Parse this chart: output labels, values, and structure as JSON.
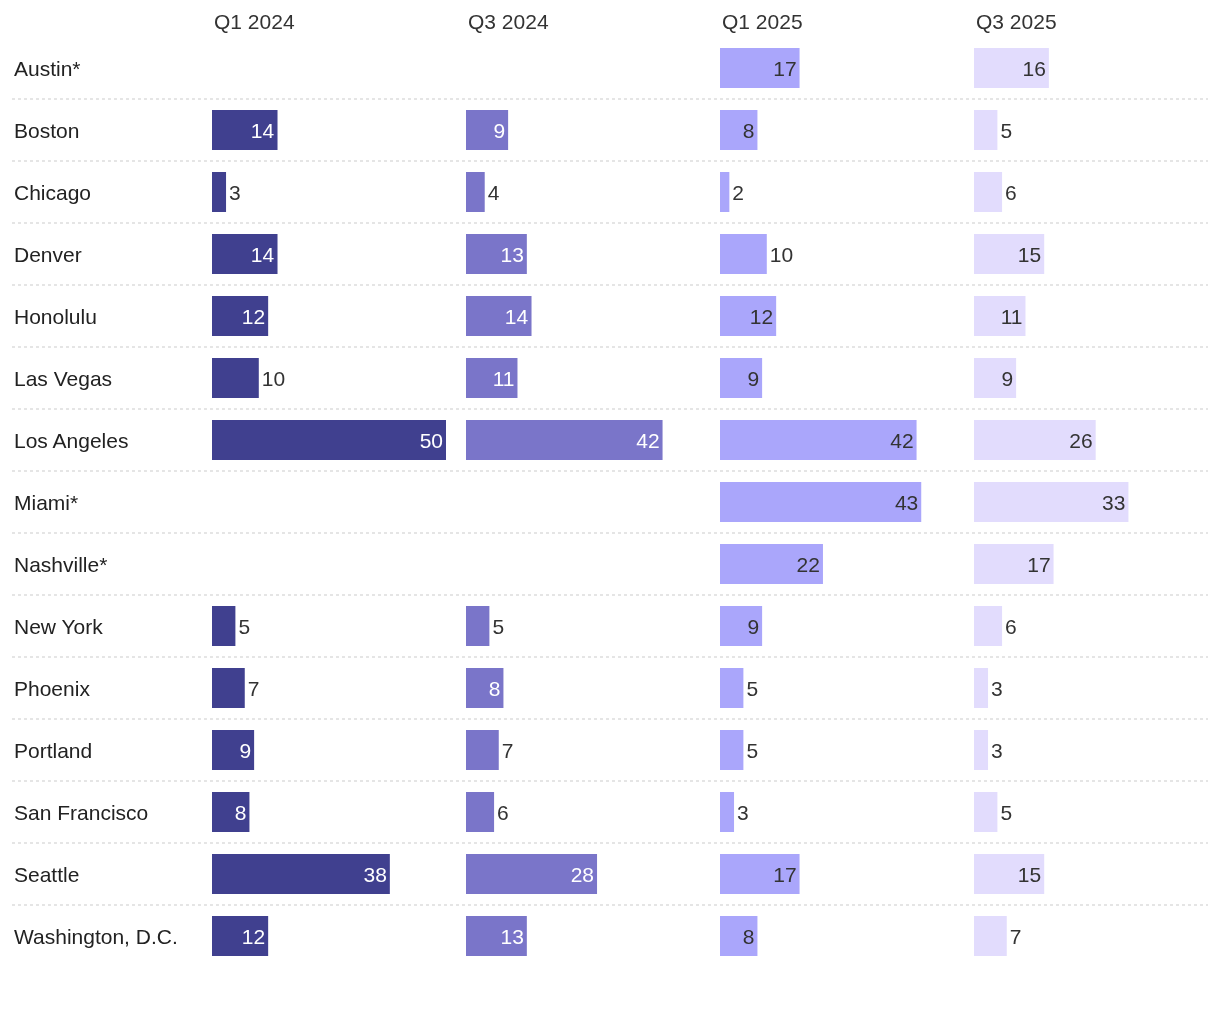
{
  "chart_data": [
    {
      "type": "bar",
      "orientation": "horizontal",
      "title": "Q1 2024",
      "categories": [
        "Austin*",
        "Boston",
        "Chicago",
        "Denver",
        "Honolulu",
        "Las Vegas",
        "Los Angeles",
        "Miami*",
        "Nashville*",
        "New York",
        "Phoenix",
        "Portland",
        "San Francisco",
        "Seattle",
        "Washington, D.C."
      ],
      "values": [
        null,
        14,
        3,
        14,
        12,
        10,
        50,
        null,
        null,
        5,
        7,
        9,
        8,
        38,
        12
      ],
      "color": "#40408f",
      "data_labels": true,
      "tick_labels": "y",
      "grid": "y"
    },
    {
      "type": "bar",
      "orientation": "horizontal",
      "title": "Q3 2024",
      "categories": [
        null,
        null,
        null,
        null,
        null,
        null,
        null,
        null,
        null,
        null,
        null,
        null,
        null,
        null,
        null
      ],
      "values": [
        null,
        9,
        4,
        13,
        14,
        11,
        42,
        null,
        null,
        5,
        8,
        7,
        6,
        28,
        13
      ],
      "color": "#7a75c9",
      "data_labels": true,
      "tick_labels": false,
      "grid": "y"
    },
    {
      "type": "bar",
      "orientation": "horizontal",
      "title": "Q1 2025",
      "categories": [
        null,
        null,
        null,
        null,
        null,
        null,
        null,
        null,
        null,
        null,
        null,
        null,
        null,
        null,
        null
      ],
      "values": [
        17,
        8,
        2,
        10,
        12,
        9,
        42,
        43,
        22,
        9,
        5,
        5,
        3,
        17,
        8
      ],
      "color": "#aaa6fb",
      "data_labels": true,
      "tick_labels": false,
      "grid": "y"
    },
    {
      "type": "bar",
      "orientation": "horizontal",
      "title": "Q3 2025",
      "categories": [
        null,
        null,
        null,
        null,
        null,
        null,
        null,
        null,
        null,
        null,
        null,
        null,
        null,
        null,
        null
      ],
      "values": [
        16,
        5,
        6,
        15,
        11,
        9,
        26,
        33,
        17,
        6,
        3,
        3,
        5,
        15,
        7
      ],
      "color": "#e2dcfd",
      "data_labels": true,
      "tick_labels": false,
      "grid": "y"
    }
  ]
}
